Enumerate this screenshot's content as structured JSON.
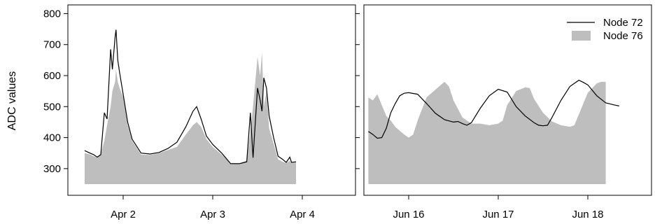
{
  "figure": {
    "ylabel": "ADC values",
    "ylim": [
      250,
      810
    ],
    "yticks": [
      300,
      400,
      500,
      600,
      700,
      800
    ],
    "colors": {
      "line": "#000000",
      "fill": "#bebebe",
      "axis": "#000000"
    }
  },
  "legend": {
    "placement": "top-right",
    "items": [
      {
        "label": "Node 72",
        "symbol": "line"
      },
      {
        "label": "Node 76",
        "symbol": "filled-box"
      }
    ]
  },
  "chart_data": [
    {
      "type": "area",
      "ylabel": "ADC values",
      "ylim": [
        250,
        810
      ],
      "xlim": [
        1.5,
        4.5
      ],
      "x_tick_values": [
        2,
        3,
        4
      ],
      "x_tick_labels": [
        "Apr  2",
        "Apr  3",
        "Apr  4"
      ],
      "series": [
        {
          "name": "Node 72",
          "mark": "line",
          "points": [
            [
              1.57,
              358
            ],
            [
              1.63,
              350
            ],
            [
              1.67,
              345
            ],
            [
              1.71,
              337
            ],
            [
              1.75,
              345
            ],
            [
              1.79,
              480
            ],
            [
              1.82,
              460
            ],
            [
              1.86,
              685
            ],
            [
              1.88,
              620
            ],
            [
              1.91,
              725
            ],
            [
              1.92,
              748
            ],
            [
              1.94,
              650
            ],
            [
              1.96,
              610
            ],
            [
              2.0,
              540
            ],
            [
              2.05,
              450
            ],
            [
              2.1,
              395
            ],
            [
              2.2,
              350
            ],
            [
              2.3,
              347
            ],
            [
              2.4,
              352
            ],
            [
              2.5,
              365
            ],
            [
              2.6,
              385
            ],
            [
              2.7,
              435
            ],
            [
              2.78,
              485
            ],
            [
              2.82,
              500
            ],
            [
              2.87,
              460
            ],
            [
              2.93,
              405
            ],
            [
              3.0,
              378
            ],
            [
              3.1,
              350
            ],
            [
              3.2,
              316
            ],
            [
              3.3,
              316
            ],
            [
              3.38,
              322
            ],
            [
              3.42,
              480
            ],
            [
              3.45,
              335
            ],
            [
              3.5,
              560
            ],
            [
              3.53,
              520
            ],
            [
              3.55,
              485
            ],
            [
              3.57,
              593
            ],
            [
              3.6,
              560
            ],
            [
              3.63,
              470
            ],
            [
              3.68,
              400
            ],
            [
              3.73,
              340
            ],
            [
              3.78,
              330
            ],
            [
              3.82,
              320
            ],
            [
              3.86,
              337
            ],
            [
              3.88,
              320
            ],
            [
              3.93,
              322
            ]
          ]
        },
        {
          "name": "Node 76",
          "mark": "filled-area",
          "points": [
            [
              1.57,
              350
            ],
            [
              1.63,
              346
            ],
            [
              1.67,
              340
            ],
            [
              1.71,
              335
            ],
            [
              1.75,
              345
            ],
            [
              1.79,
              390
            ],
            [
              1.82,
              440
            ],
            [
              1.86,
              500
            ],
            [
              1.88,
              550
            ],
            [
              1.91,
              580
            ],
            [
              1.92,
              620
            ],
            [
              1.94,
              580
            ],
            [
              1.96,
              560
            ],
            [
              2.0,
              530
            ],
            [
              2.05,
              440
            ],
            [
              2.1,
              390
            ],
            [
              2.2,
              345
            ],
            [
              2.3,
              344
            ],
            [
              2.4,
              350
            ],
            [
              2.5,
              360
            ],
            [
              2.6,
              370
            ],
            [
              2.7,
              410
            ],
            [
              2.78,
              440
            ],
            [
              2.82,
              450
            ],
            [
              2.87,
              435
            ],
            [
              2.93,
              395
            ],
            [
              3.0,
              370
            ],
            [
              3.1,
              345
            ],
            [
              3.2,
              318
            ],
            [
              3.3,
              318
            ],
            [
              3.38,
              325
            ],
            [
              3.42,
              420
            ],
            [
              3.45,
              500
            ],
            [
              3.5,
              660
            ],
            [
              3.53,
              600
            ],
            [
              3.55,
              675
            ],
            [
              3.57,
              500
            ],
            [
              3.6,
              550
            ],
            [
              3.63,
              430
            ],
            [
              3.68,
              380
            ],
            [
              3.73,
              330
            ],
            [
              3.78,
              322
            ],
            [
              3.82,
              318
            ],
            [
              3.86,
              325
            ],
            [
              3.88,
              318
            ],
            [
              3.93,
              320
            ]
          ]
        }
      ]
    },
    {
      "type": "area",
      "ylabel": "",
      "ylim": [
        250,
        810
      ],
      "xlim": [
        15.55,
        18.55
      ],
      "x_tick_values": [
        16,
        17,
        18
      ],
      "x_tick_labels": [
        "Jun 16",
        "Jun 17",
        "Jun 18"
      ],
      "series": [
        {
          "name": "Node 72",
          "mark": "line",
          "points": [
            [
              15.55,
              420
            ],
            [
              15.6,
              410
            ],
            [
              15.65,
              398
            ],
            [
              15.7,
              400
            ],
            [
              15.75,
              430
            ],
            [
              15.8,
              480
            ],
            [
              15.85,
              510
            ],
            [
              15.9,
              535
            ],
            [
              15.95,
              543
            ],
            [
              16.0,
              545
            ],
            [
              16.1,
              540
            ],
            [
              16.2,
              510
            ],
            [
              16.3,
              478
            ],
            [
              16.4,
              458
            ],
            [
              16.5,
              450
            ],
            [
              16.55,
              452
            ],
            [
              16.6,
              445
            ],
            [
              16.65,
              440
            ],
            [
              16.7,
              448
            ],
            [
              16.8,
              495
            ],
            [
              16.9,
              535
            ],
            [
              17.0,
              556
            ],
            [
              17.1,
              547
            ],
            [
              17.2,
              500
            ],
            [
              17.3,
              470
            ],
            [
              17.4,
              448
            ],
            [
              17.45,
              440
            ],
            [
              17.5,
              438
            ],
            [
              17.55,
              440
            ],
            [
              17.6,
              465
            ],
            [
              17.7,
              520
            ],
            [
              17.8,
              565
            ],
            [
              17.9,
              585
            ],
            [
              17.95,
              578
            ],
            [
              18.0,
              570
            ],
            [
              18.1,
              535
            ],
            [
              18.2,
              512
            ],
            [
              18.3,
              505
            ],
            [
              18.35,
              502
            ]
          ]
        },
        {
          "name": "Node 76",
          "mark": "filled-area",
          "points": [
            [
              15.55,
              530
            ],
            [
              15.6,
              520
            ],
            [
              15.65,
              540
            ],
            [
              15.7,
              505
            ],
            [
              15.75,
              470
            ],
            [
              15.8,
              455
            ],
            [
              15.85,
              435
            ],
            [
              15.9,
              422
            ],
            [
              15.95,
              410
            ],
            [
              16.0,
              400
            ],
            [
              16.05,
              410
            ],
            [
              16.1,
              455
            ],
            [
              16.2,
              530
            ],
            [
              16.3,
              555
            ],
            [
              16.4,
              580
            ],
            [
              16.45,
              565
            ],
            [
              16.5,
              520
            ],
            [
              16.6,
              465
            ],
            [
              16.7,
              445
            ],
            [
              16.8,
              445
            ],
            [
              16.9,
              440
            ],
            [
              17.0,
              445
            ],
            [
              17.05,
              455
            ],
            [
              17.1,
              505
            ],
            [
              17.2,
              550
            ],
            [
              17.3,
              562
            ],
            [
              17.35,
              560
            ],
            [
              17.4,
              525
            ],
            [
              17.5,
              480
            ],
            [
              17.6,
              452
            ],
            [
              17.7,
              440
            ],
            [
              17.8,
              435
            ],
            [
              17.85,
              440
            ],
            [
              17.9,
              475
            ],
            [
              18.0,
              545
            ],
            [
              18.1,
              575
            ],
            [
              18.15,
              580
            ],
            [
              18.2,
              580
            ]
          ]
        }
      ]
    }
  ]
}
